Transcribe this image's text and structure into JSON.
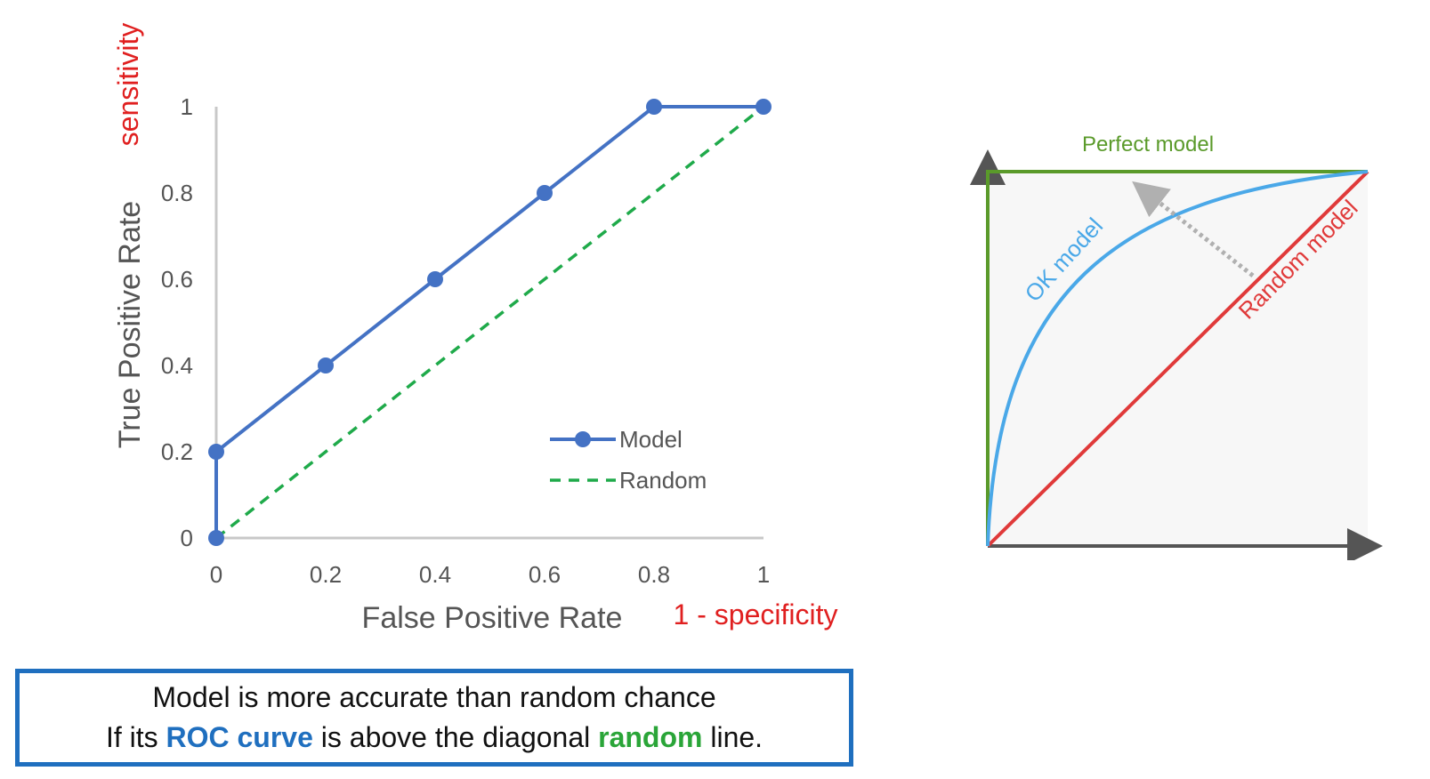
{
  "chart_data": [
    {
      "type": "line",
      "title": "",
      "xlabel": "False Positive Rate",
      "ylabel": "True Positive Rate",
      "xlabel_note": "1 - specificity",
      "ylabel_note": "sensitivity",
      "xlim": [
        0,
        1
      ],
      "ylim": [
        0,
        1
      ],
      "x_ticks": [
        "0",
        "0.2",
        "0.4",
        "0.6",
        "0.8",
        "1"
      ],
      "y_ticks": [
        "0",
        "0.2",
        "0.4",
        "0.6",
        "0.8",
        "1"
      ],
      "grid": false,
      "legend": "inside-right",
      "series": [
        {
          "name": "Model",
          "style": "solid-markers",
          "color": "#4472c4",
          "x": [
            0,
            0,
            0.2,
            0.4,
            0.6,
            0.8,
            1
          ],
          "y": [
            0,
            0.2,
            0.4,
            0.6,
            0.8,
            1,
            1
          ]
        },
        {
          "name": "Random",
          "style": "dashed",
          "color": "#1faa4a",
          "x": [
            0,
            1
          ],
          "y": [
            0,
            1
          ]
        }
      ]
    },
    {
      "type": "line",
      "title": "",
      "legend": "none",
      "series": [
        {
          "name": "Perfect model",
          "color": "#5a9a2a"
        },
        {
          "name": "OK model",
          "color": "#4aa8e8"
        },
        {
          "name": "Random model",
          "color": "#e03a3a"
        }
      ],
      "arrow_color": "#b0b0b0"
    }
  ],
  "caption": {
    "line1": "Model is more accurate than random chance",
    "line2_prefix": "If its ",
    "line2_roc": "ROC curve",
    "line2_middle": " is above the diagonal ",
    "line2_random": "random",
    "line2_suffix": " line."
  }
}
